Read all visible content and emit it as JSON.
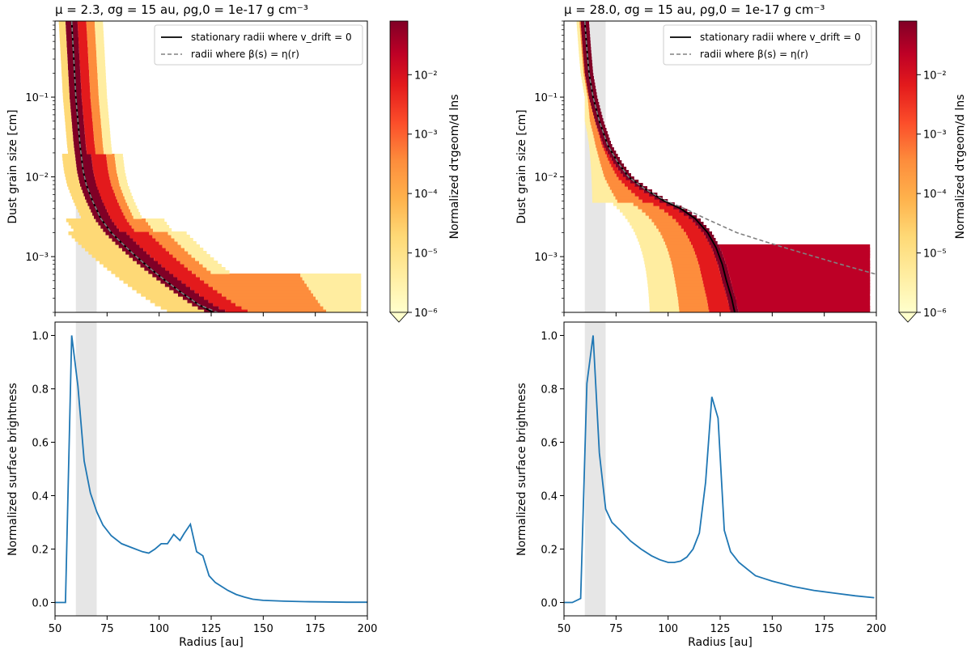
{
  "figure": {
    "left_title": "μ = 2.3, σg = 15 au, ρg,0 = 1e-17 g cm⁻³",
    "right_title": "μ = 28.0, σg = 15 au, ρg,0 = 1e-17 g cm⁻³"
  },
  "colors": {
    "line": "#1f77b4",
    "stationary": "#000000",
    "beta_eta": "#808080",
    "shade": "#e6e6e6",
    "cmap": [
      "#ffffcc",
      "#ffeda0",
      "#fed976",
      "#feb24c",
      "#fd8d3c",
      "#fc4e2a",
      "#e31a1c",
      "#bd0026",
      "#800026"
    ]
  },
  "chart_data": [
    {
      "type": "heatmap",
      "panel": "top-left",
      "xlim": [
        50,
        200
      ],
      "ylim": [
        0.0002,
        0.9
      ],
      "yscale": "log",
      "ylabel": "Dust grain size [cm]",
      "ytick_labels": [
        "10⁻¹",
        "10⁻²",
        "10⁻³"
      ],
      "yticks": [
        0.1,
        0.01,
        0.001
      ],
      "legend": {
        "position": "top-right",
        "entries": [
          "stationary radii where v_drift = 0",
          "radii where β(s) = η(r)"
        ]
      },
      "stationary_curve": {
        "s": [
          0.9,
          0.3,
          0.1,
          0.05,
          0.025,
          0.012,
          0.008,
          0.005,
          0.003,
          0.002,
          0.0014,
          0.001,
          0.0007,
          0.0005,
          0.00035,
          0.00025,
          0.0002
        ],
        "r": [
          58,
          59,
          60,
          61,
          62,
          63.5,
          65,
          68,
          72,
          77,
          83,
          89,
          96,
          103,
          111,
          119,
          126
        ]
      },
      "beta_eta_curve": {
        "s": [
          0.9,
          0.3,
          0.1,
          0.05,
          0.025,
          0.012,
          0.008,
          0.005,
          0.003,
          0.002,
          0.0014,
          0.001,
          0.0007,
          0.0005,
          0.00035,
          0.00025,
          0.0002
        ],
        "r": [
          58,
          59,
          60,
          61,
          62,
          63.5,
          65,
          68,
          72,
          77,
          83,
          89,
          96,
          103,
          111,
          119,
          128
        ]
      },
      "shade_x": [
        60,
        70
      ]
    },
    {
      "type": "heatmap",
      "panel": "top-right",
      "xlim": [
        50,
        200
      ],
      "ylim": [
        0.0002,
        0.9
      ],
      "yscale": "log",
      "ylabel": "Dust grain size [cm]",
      "ytick_labels": [
        "10⁻¹",
        "10⁻²",
        "10⁻³"
      ],
      "yticks": [
        0.1,
        0.01,
        0.001
      ],
      "legend": {
        "position": "top-right",
        "entries": [
          "stationary radii where v_drift = 0",
          "radii where β(s) = η(r)"
        ]
      },
      "stationary_curve": {
        "s": [
          0.9,
          0.4,
          0.2,
          0.1,
          0.05,
          0.025,
          0.015,
          0.01,
          0.007,
          0.005,
          0.004,
          0.003,
          0.002,
          0.0013,
          0.0008,
          0.0005,
          0.0003,
          0.0002
        ],
        "r": [
          60,
          61,
          62,
          64,
          67,
          71,
          76,
          81,
          89,
          98,
          106,
          113,
          119,
          123,
          126,
          128,
          130.5,
          132
        ]
      },
      "beta_eta_curve": {
        "s": [
          0.9,
          0.4,
          0.2,
          0.1,
          0.05,
          0.025,
          0.015,
          0.01,
          0.007,
          0.005,
          0.004,
          0.003,
          0.002,
          0.0015,
          0.0011,
          0.0008,
          0.0006
        ],
        "r": [
          60,
          61,
          62,
          64,
          67,
          71,
          76,
          81,
          89,
          99,
          108,
          118,
          133,
          148,
          165,
          183,
          200
        ]
      },
      "shade_x": [
        60,
        70
      ]
    },
    {
      "type": "colorbar",
      "label": "Normalized dτgeom/d lns",
      "scale": "log",
      "range": [
        1e-06,
        0.08
      ],
      "tick_labels": [
        "10⁻²",
        "10⁻³",
        "10⁻⁴",
        "10⁻⁵",
        "10⁻⁶"
      ],
      "ticks": [
        0.01,
        0.001,
        0.0001,
        1e-05,
        1e-06
      ]
    },
    {
      "type": "line",
      "panel": "bottom-left",
      "xlabel": "Radius [au]",
      "ylabel": "Normalized surface brightness",
      "xlim": [
        50,
        200
      ],
      "ylim": [
        -0.05,
        1.05
      ],
      "xticks": [
        50,
        75,
        100,
        125,
        150,
        175,
        200
      ],
      "yticks": [
        0.0,
        0.2,
        0.4,
        0.6,
        0.8,
        1.0
      ],
      "xtick_labels": [
        "50",
        "75",
        "100",
        "125",
        "150",
        "175",
        "200"
      ],
      "ytick_labels": [
        "0.0",
        "0.2",
        "0.4",
        "0.6",
        "0.8",
        "1.0"
      ],
      "x": [
        50,
        55,
        58,
        61,
        64,
        67,
        70,
        73,
        77,
        82,
        87,
        92,
        95,
        98,
        101,
        104,
        107,
        110,
        112,
        115,
        118,
        121,
        124,
        127,
        130,
        133,
        137,
        141,
        145,
        150,
        160,
        170,
        180,
        190,
        200
      ],
      "y": [
        0.0,
        0.0,
        1.0,
        0.81,
        0.53,
        0.41,
        0.34,
        0.29,
        0.25,
        0.22,
        0.205,
        0.19,
        0.185,
        0.2,
        0.22,
        0.22,
        0.255,
        0.232,
        0.258,
        0.293,
        0.19,
        0.175,
        0.1,
        0.075,
        0.06,
        0.045,
        0.03,
        0.02,
        0.012,
        0.008,
        0.005,
        0.003,
        0.002,
        0.001,
        0.001
      ],
      "shade_x": [
        60,
        70
      ]
    },
    {
      "type": "line",
      "panel": "bottom-right",
      "xlabel": "Radius [au]",
      "ylabel": "Normalized surface brightness",
      "xlim": [
        50,
        200
      ],
      "ylim": [
        -0.05,
        1.05
      ],
      "xticks": [
        50,
        75,
        100,
        125,
        150,
        175,
        200
      ],
      "yticks": [
        0.0,
        0.2,
        0.4,
        0.6,
        0.8,
        1.0
      ],
      "xtick_labels": [
        "50",
        "75",
        "100",
        "125",
        "150",
        "175",
        "200"
      ],
      "ytick_labels": [
        "0.0",
        "0.2",
        "0.4",
        "0.6",
        "0.8",
        "1.0"
      ],
      "x": [
        50,
        54,
        58,
        61,
        64,
        67,
        70,
        73,
        77,
        82,
        87,
        92,
        96,
        100,
        103,
        106,
        109,
        112,
        115,
        118,
        121,
        124,
        127,
        130,
        134,
        138,
        142,
        146,
        150,
        160,
        170,
        180,
        190,
        199
      ],
      "y": [
        0.0,
        0.0,
        0.015,
        0.82,
        1.0,
        0.56,
        0.35,
        0.3,
        0.27,
        0.23,
        0.2,
        0.175,
        0.16,
        0.15,
        0.15,
        0.155,
        0.17,
        0.2,
        0.26,
        0.45,
        0.77,
        0.69,
        0.27,
        0.19,
        0.15,
        0.125,
        0.1,
        0.09,
        0.08,
        0.06,
        0.045,
        0.035,
        0.025,
        0.018
      ],
      "shade_x": [
        60,
        70
      ]
    }
  ]
}
